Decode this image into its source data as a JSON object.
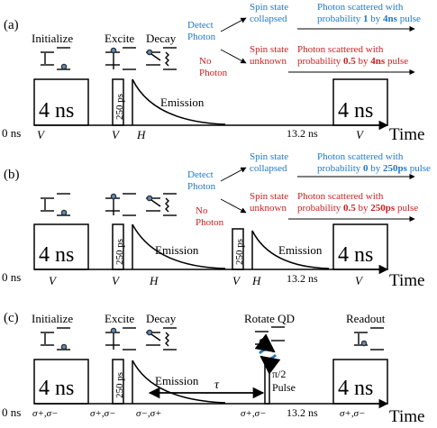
{
  "colors": {
    "blue": "#1f78c8",
    "red": "#cc1f1f",
    "black": "#000000",
    "dot": "#5b8fc9"
  },
  "panel_a": {
    "label": "(a)",
    "step_initialize": "Initialize",
    "step_excite": "Excite",
    "step_decay": "Decay",
    "detect_line1": "Detect",
    "detect_line2": "Photon",
    "no_line1": "No",
    "no_line2": "Photon",
    "collapsed_line1": "Spin state",
    "collapsed_line2": "collapsed",
    "unknown_line1": "Spin state",
    "unknown_line2": "unknown",
    "out1_line1": "Photon scattered with",
    "out1_pre": "probability ",
    "out1_p": "1",
    "out1_mid": " by ",
    "out1_t": "4ns",
    "out1_post": " pulse",
    "out2_line1": "Photon scattered with",
    "out2_pre": "probability ",
    "out2_p": "0.5",
    "out2_mid": " by ",
    "out2_t": "4ns",
    "out2_post": " pulse",
    "pulse1": "4 ns",
    "pulse_short": "250 ps",
    "pulse2": "4 ns",
    "emission": "Emission",
    "t0": "0 ns",
    "t1": "13.2  ns",
    "time_axis": "Time",
    "pol1": "V",
    "pol2": "V",
    "pol3": "H",
    "pol4": "V"
  },
  "panel_b": {
    "label": "(b)",
    "detect_line1": "Detect",
    "detect_line2": "Photon",
    "no_line1": "No",
    "no_line2": "Photon",
    "collapsed_line1": "Spin state",
    "collapsed_line2": "collapsed",
    "unknown_line1": "Spin state",
    "unknown_line2": "unknown",
    "out1_line1": "Photon scattered with",
    "out1_pre": "probability ",
    "out1_p": "0",
    "out1_mid": " by ",
    "out1_t": "250ps",
    "out1_post": " pulse",
    "out2_line1": "Photon scattered with",
    "out2_pre": "probability ",
    "out2_p": "0.5",
    "out2_mid": " by ",
    "out2_t": "250ps",
    "out2_post": " pulse",
    "pulse1": "4 ns",
    "pulse_short1": "250 ps",
    "pulse_short2": "250 ps",
    "pulse2": "4 ns",
    "emission1": "Emission",
    "emission2": "Emission",
    "t0": "0 ns",
    "t1": "13.2  ns",
    "time_axis": "Time",
    "pol1": "V",
    "pol2": "V",
    "pol3": "H",
    "pol4": "V",
    "pol5": "H",
    "pol6": "V"
  },
  "panel_c": {
    "label": "(c)",
    "step_initialize": "Initialize",
    "step_excite": "Excite",
    "step_decay": "Decay",
    "step_rotate": "Rotate QD",
    "step_readout": "Readout",
    "pulse1": "4 ns",
    "pulse_short": "250 ps",
    "pulse2": "4 ns",
    "pi_line1": "π/2",
    "pi_line2": "Pulse",
    "emission": "Emission",
    "tau": "τ",
    "t0": "0 ns",
    "t1": "13.2  ns",
    "time_axis": "Time",
    "pol1": "σ+,σ−",
    "pol2": "σ+,σ−",
    "pol3": "σ−,σ+",
    "pol4": "σ+,σ−",
    "pol5": "σ+,σ−"
  }
}
